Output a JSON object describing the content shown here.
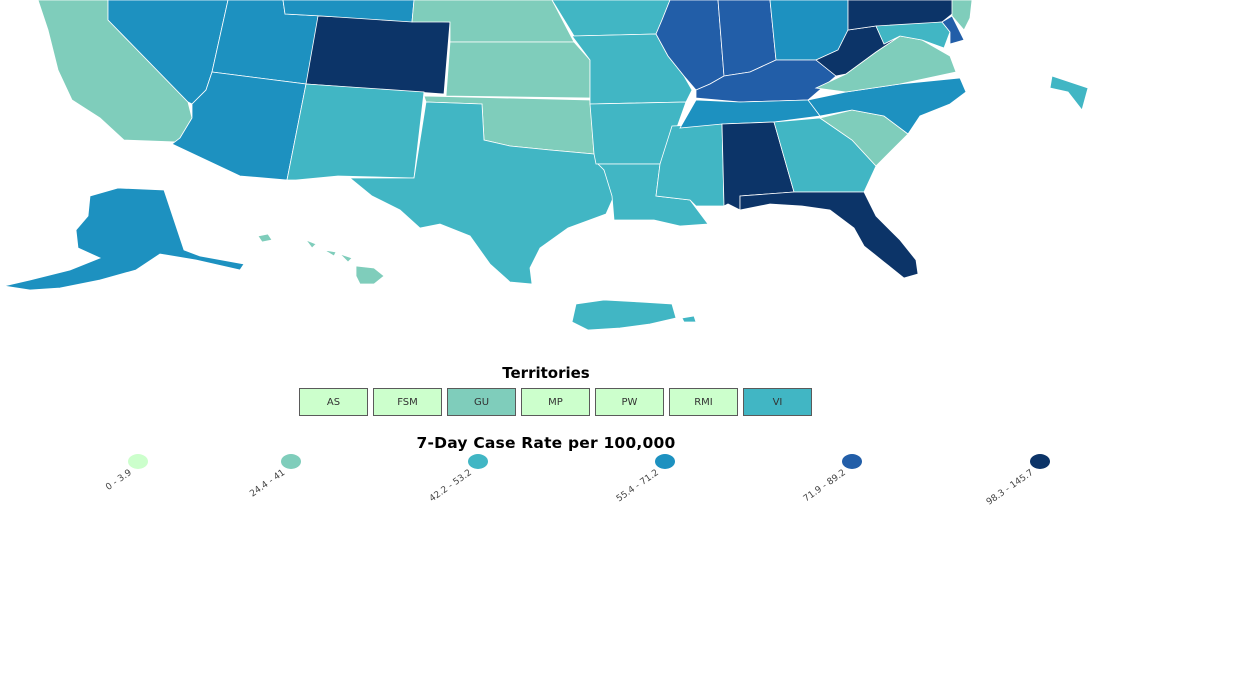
{
  "territories": {
    "title": "Territories",
    "items": [
      {
        "label": "AS",
        "color": "#ccffcc"
      },
      {
        "label": "FSM",
        "color": "#ccffcc"
      },
      {
        "label": "GU",
        "color": "#7fcdbb"
      },
      {
        "label": "MP",
        "color": "#ccffcc"
      },
      {
        "label": "PW",
        "color": "#ccffcc"
      },
      {
        "label": "RMI",
        "color": "#ccffcc"
      },
      {
        "label": "VI",
        "color": "#41b6c4"
      }
    ]
  },
  "legend": {
    "title": "7-Day Case Rate per 100,000",
    "bins": [
      {
        "label": "0 - 3.9",
        "color": "#ccffcc"
      },
      {
        "label": "24.4 - 41",
        "color": "#7fcdbb"
      },
      {
        "label": "42.2 - 53.2",
        "color": "#41b6c4"
      },
      {
        "label": "55.4 - 71.2",
        "color": "#1d91c0"
      },
      {
        "label": "71.9 - 89.2",
        "color": "#225ea8"
      },
      {
        "label": "98.3 - 145.7",
        "color": "#0c3468"
      }
    ]
  },
  "map": {
    "states": [
      {
        "name": "California",
        "bin": 1
      },
      {
        "name": "Nevada",
        "bin": 3
      },
      {
        "name": "Utah",
        "bin": 3
      },
      {
        "name": "Arizona",
        "bin": 3
      },
      {
        "name": "Colorado",
        "bin": 5
      },
      {
        "name": "New Mexico",
        "bin": 2
      },
      {
        "name": "Wyoming",
        "bin": 3
      },
      {
        "name": "Nebraska",
        "bin": 1
      },
      {
        "name": "Kansas",
        "bin": 1
      },
      {
        "name": "Oklahoma",
        "bin": 1
      },
      {
        "name": "Texas",
        "bin": 2
      },
      {
        "name": "Iowa",
        "bin": 2
      },
      {
        "name": "Missouri",
        "bin": 2
      },
      {
        "name": "Arkansas",
        "bin": 2
      },
      {
        "name": "Louisiana",
        "bin": 2
      },
      {
        "name": "Mississippi",
        "bin": 2
      },
      {
        "name": "Illinois",
        "bin": 4
      },
      {
        "name": "Indiana",
        "bin": 4
      },
      {
        "name": "Ohio",
        "bin": 3
      },
      {
        "name": "Kentucky",
        "bin": 4
      },
      {
        "name": "Tennessee",
        "bin": 3
      },
      {
        "name": "Alabama",
        "bin": 5
      },
      {
        "name": "Georgia",
        "bin": 2
      },
      {
        "name": "Florida",
        "bin": 5
      },
      {
        "name": "South Carolina",
        "bin": 1
      },
      {
        "name": "North Carolina",
        "bin": 3
      },
      {
        "name": "Virginia",
        "bin": 1
      },
      {
        "name": "West Virginia",
        "bin": 5
      },
      {
        "name": "Pennsylvania",
        "bin": 5
      },
      {
        "name": "Delaware",
        "bin": 4
      },
      {
        "name": "Maryland",
        "bin": 2
      },
      {
        "name": "New Jersey",
        "bin": 1
      },
      {
        "name": "Alaska",
        "bin": 3
      },
      {
        "name": "Hawaii",
        "bin": 1
      },
      {
        "name": "Puerto Rico",
        "bin": 2
      },
      {
        "name": "Rhode Island",
        "bin": 2
      }
    ]
  }
}
